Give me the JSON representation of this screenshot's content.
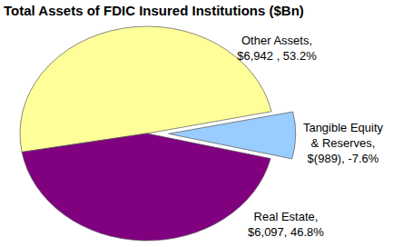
{
  "chart_data": {
    "type": "pie",
    "title": "Total Assets of FDIC Insured Institutions ($Bn)",
    "categories": [
      "Other Assets,",
      "Tangible Equity & Reserves,",
      "Real Estate,"
    ],
    "values": [
      6942,
      -989,
      6097
    ],
    "value_labels": [
      "$6,942 , 53.2%",
      "$(989), -7.6%",
      "$6,097, 46.8%"
    ],
    "colors": [
      "#FFFF99",
      "#99CCFF",
      "#800080"
    ],
    "data_labels": true
  }
}
